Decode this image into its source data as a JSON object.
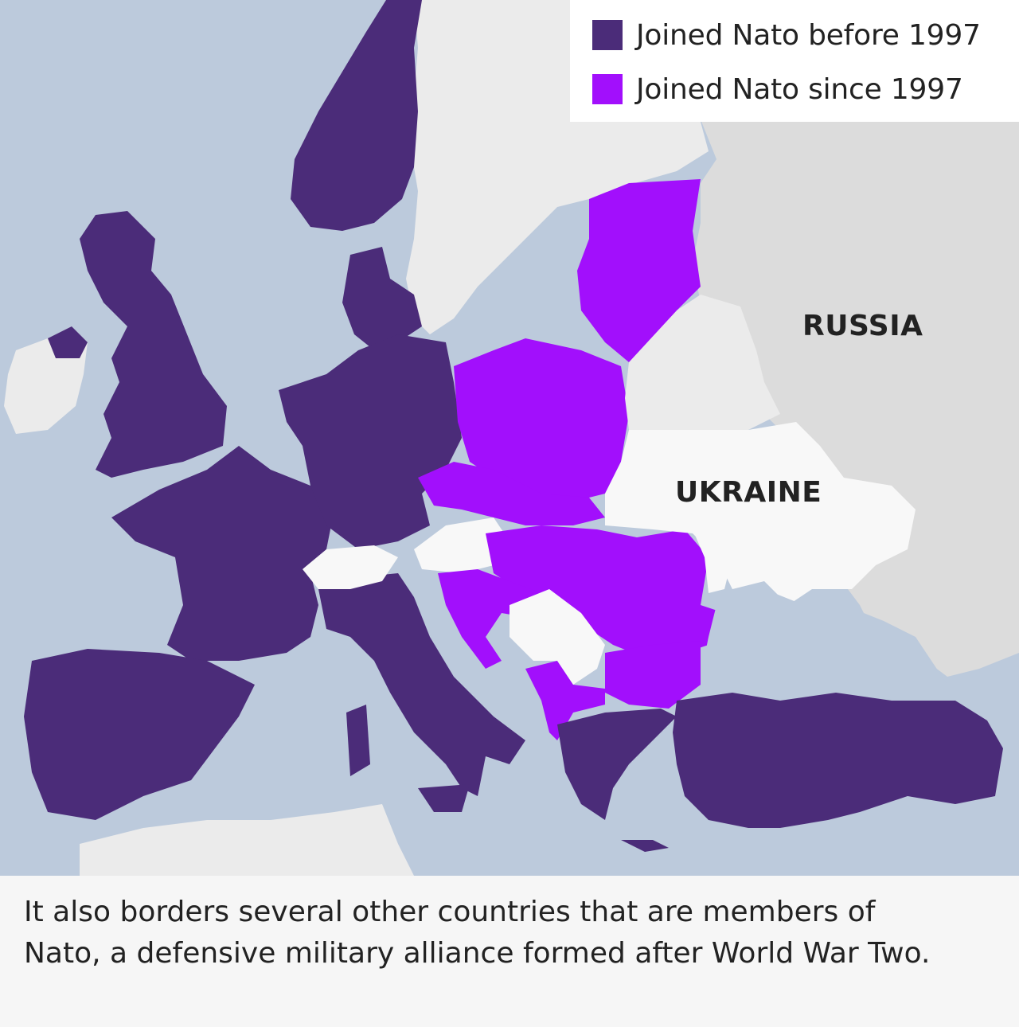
{
  "legend": {
    "items": [
      {
        "label": "Joined Nato before 1997",
        "color": "#4b2c79"
      },
      {
        "label": "Joined Nato since 1997",
        "color": "#a20ffc"
      }
    ]
  },
  "labels": {
    "russia": "RUSSIA",
    "ukraine": "UKRAINE"
  },
  "colors": {
    "sea": "#bccadc",
    "non_member": "#ebebeb",
    "highlight_non_member": "#f8f8f8",
    "russia": "#dcdcdc",
    "nato_before_1997": "#4b2c79",
    "nato_since_1997": "#a20ffc"
  },
  "caption": {
    "text": "It also borders several other countries that are members of Nato, a defensive military alliance formed after World War Two."
  }
}
